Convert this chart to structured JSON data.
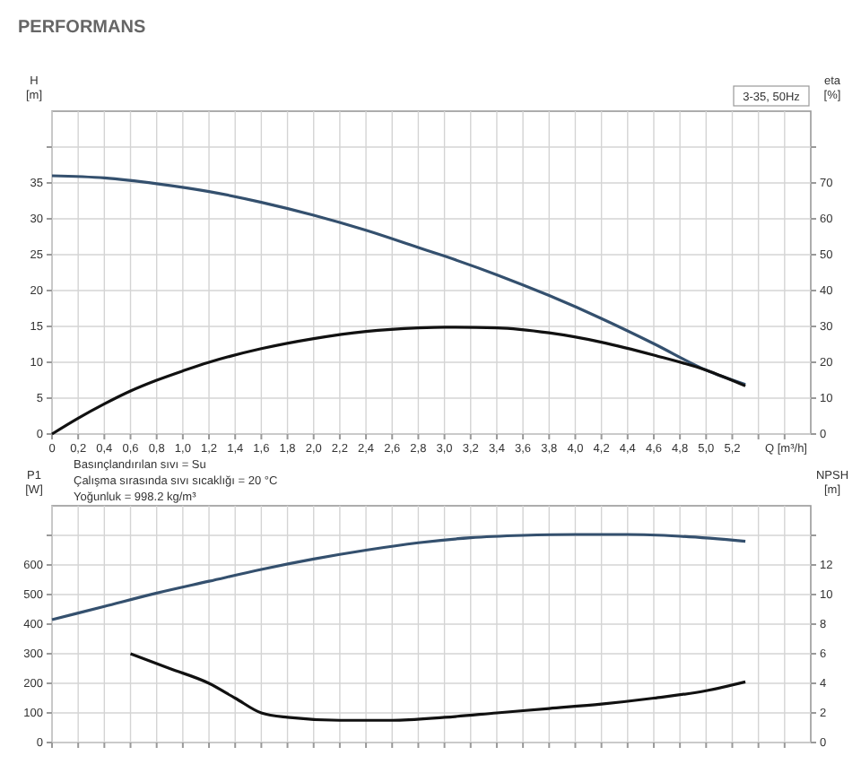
{
  "chart_data": [
    {
      "type": "line",
      "title": "PERFORMANS",
      "xlabel": "Q [m³/h]",
      "ylabel": "H [m]",
      "y2label": "eta [%]",
      "grid": true,
      "annotations": [
        "3-35, 50Hz",
        "Basınçlandırılan sıvı = Su",
        "Çalışma sırasında sıvı sıcaklığı = 20 °C",
        "Yoğunluk = 998.2 kg/m³"
      ],
      "xlim": [
        0,
        5.8
      ],
      "xticks": [
        0,
        {
          "value": 0.2,
          "label": "0,2"
        },
        {
          "value": 0.4,
          "label": "0,4"
        },
        {
          "value": 0.6,
          "label": "0,6"
        },
        {
          "value": 0.8,
          "label": "0,8"
        },
        {
          "value": 1.0,
          "label": "1,0"
        },
        {
          "value": 1.2,
          "label": "1,2"
        },
        {
          "value": 1.4,
          "label": "1,4"
        },
        {
          "value": 1.6,
          "label": "1,6"
        },
        {
          "value": 1.8,
          "label": "1,8"
        },
        {
          "value": 2.0,
          "label": "2,0"
        },
        {
          "value": 2.2,
          "label": "2,2"
        },
        {
          "value": 2.4,
          "label": "2,4"
        },
        {
          "value": 2.6,
          "label": "2,6"
        },
        {
          "value": 2.8,
          "label": "2,8"
        },
        {
          "value": 3.0,
          "label": "3,0"
        },
        {
          "value": 3.2,
          "label": "3,2"
        },
        {
          "value": 3.4,
          "label": "3,4"
        },
        {
          "value": 3.6,
          "label": "3,6"
        },
        {
          "value": 3.8,
          "label": "3,8"
        },
        {
          "value": 4.0,
          "label": "4,0"
        },
        {
          "value": 4.2,
          "label": "4,2"
        },
        {
          "value": 4.4,
          "label": "4,4"
        },
        {
          "value": 4.6,
          "label": "4,6"
        },
        {
          "value": 4.8,
          "label": "4,8"
        },
        {
          "value": 5.0,
          "label": "5,0"
        },
        {
          "value": 5.2,
          "label": "5,2"
        },
        {
          "value": 5.4,
          "label": null
        },
        {
          "value": 5.6,
          "label": null
        }
      ],
      "ylim": [
        0,
        45
      ],
      "yticks": [
        0,
        5,
        10,
        15,
        20,
        25,
        30,
        35,
        {
          "value": 40,
          "label": null
        }
      ],
      "y2lim": [
        0,
        90
      ],
      "y2ticks": [
        0,
        10,
        20,
        30,
        40,
        50,
        60,
        70,
        {
          "value": 80,
          "label": null
        }
      ],
      "series": [
        {
          "color": "#34506e",
          "x": [
            0,
            0.4,
            0.8,
            1.2,
            1.6,
            2.0,
            2.4,
            2.8,
            3.0,
            3.4,
            3.8,
            4.2,
            4.6,
            5.0,
            5.3
          ],
          "values": [
            36,
            35.7,
            34.9,
            33.8,
            32.3,
            30.5,
            28.4,
            26.0,
            24.8,
            22.2,
            19.3,
            16.1,
            12.6,
            8.9,
            6.9
          ]
        },
        {
          "color": "#111111",
          "axis": "y2",
          "x": [
            0,
            0.2,
            0.4,
            0.6,
            0.8,
            1.0,
            1.2,
            1.6,
            2.0,
            2.4,
            2.8,
            3.0,
            3.4,
            3.8,
            4.2,
            4.6,
            5.0,
            5.3
          ],
          "values": [
            0,
            4.4,
            8.4,
            12,
            15,
            17.6,
            20,
            23.8,
            26.6,
            28.6,
            29.6,
            29.8,
            29.6,
            28.2,
            25.6,
            22,
            17.8,
            13.4
          ]
        }
      ]
    },
    {
      "type": "line",
      "ylabel": "P1 [W]",
      "y2label": "NPSH [m]",
      "grid": true,
      "tick_labels": "y",
      "xlim": [
        0,
        5.8
      ],
      "xticks": [
        0,
        0.2,
        0.4,
        0.6,
        0.8,
        1.0,
        1.2,
        1.4,
        1.6,
        1.8,
        2.0,
        2.2,
        2.4,
        2.6,
        2.8,
        3.0,
        3.2,
        3.4,
        3.6,
        3.8,
        4.0,
        4.2,
        4.4,
        4.6,
        4.8,
        5.0,
        5.2,
        5.4,
        5.6
      ],
      "ylim": [
        0,
        800
      ],
      "yticks": [
        0,
        100,
        200,
        300,
        400,
        500,
        600,
        {
          "value": 700,
          "label": null
        }
      ],
      "y2lim": [
        0,
        16
      ],
      "y2ticks": [
        0,
        2,
        4,
        6,
        8,
        10,
        12,
        {
          "value": 14,
          "label": null
        }
      ],
      "series": [
        {
          "color": "#34506e",
          "x": [
            0,
            0.4,
            0.8,
            1.2,
            1.6,
            2.0,
            2.4,
            2.8,
            3.2,
            3.6,
            4.0,
            4.4,
            4.8,
            5.3
          ],
          "values": [
            415,
            460,
            505,
            545,
            585,
            620,
            650,
            675,
            692,
            700,
            703,
            703,
            697,
            680
          ]
        },
        {
          "color": "#111111",
          "axis": "y2",
          "x": [
            0.6,
            0.9,
            1.2,
            1.4,
            1.6,
            1.8,
            2.2,
            2.6,
            3.0,
            3.4,
            3.8,
            4.2,
            4.6,
            5.0,
            5.3
          ],
          "values": [
            6.0,
            5.0,
            4.0,
            3.0,
            2.0,
            1.7,
            1.5,
            1.5,
            1.7,
            2.0,
            2.3,
            2.6,
            3.0,
            3.5,
            4.1
          ]
        }
      ]
    }
  ]
}
